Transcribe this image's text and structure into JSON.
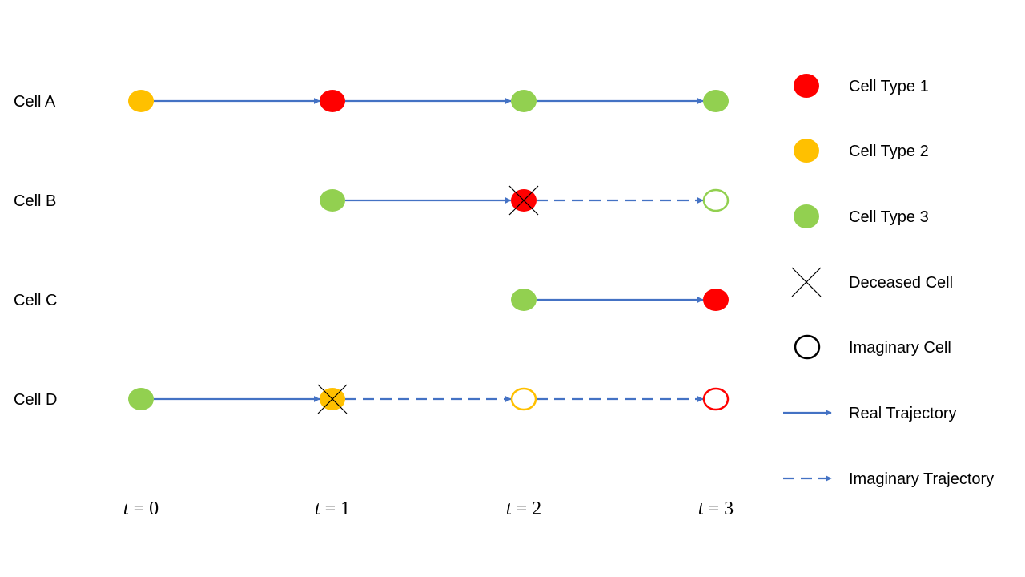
{
  "colors": {
    "cell_type_1": "#ff0000",
    "cell_type_2": "#ffc000",
    "cell_type_3": "#92d050",
    "trajectory": "#4472c4",
    "cross": "#000000"
  },
  "time_steps": [
    {
      "var": "t",
      "op": "=",
      "value": "0"
    },
    {
      "var": "t",
      "op": "=",
      "value": "1"
    },
    {
      "var": "t",
      "op": "=",
      "value": "2"
    },
    {
      "var": "t",
      "op": "=",
      "value": "3"
    }
  ],
  "cells": [
    {
      "label": "Cell A",
      "nodes": [
        {
          "t": 0,
          "type": "cell_type_2",
          "state": "real"
        },
        {
          "t": 1,
          "type": "cell_type_1",
          "state": "real"
        },
        {
          "t": 2,
          "type": "cell_type_3",
          "state": "real"
        },
        {
          "t": 3,
          "type": "cell_type_3",
          "state": "real"
        }
      ],
      "edges": [
        {
          "from": 0,
          "to": 1,
          "kind": "real"
        },
        {
          "from": 1,
          "to": 2,
          "kind": "real"
        },
        {
          "from": 2,
          "to": 3,
          "kind": "real"
        }
      ]
    },
    {
      "label": "Cell B",
      "nodes": [
        {
          "t": 1,
          "type": "cell_type_3",
          "state": "real"
        },
        {
          "t": 2,
          "type": "cell_type_1",
          "state": "deceased"
        },
        {
          "t": 3,
          "type": "cell_type_3",
          "state": "imaginary"
        }
      ],
      "edges": [
        {
          "from": 1,
          "to": 2,
          "kind": "real"
        },
        {
          "from": 2,
          "to": 3,
          "kind": "imaginary"
        }
      ]
    },
    {
      "label": "Cell C",
      "nodes": [
        {
          "t": 2,
          "type": "cell_type_3",
          "state": "real"
        },
        {
          "t": 3,
          "type": "cell_type_1",
          "state": "real"
        }
      ],
      "edges": [
        {
          "from": 2,
          "to": 3,
          "kind": "real"
        }
      ]
    },
    {
      "label": "Cell D",
      "nodes": [
        {
          "t": 0,
          "type": "cell_type_3",
          "state": "real"
        },
        {
          "t": 1,
          "type": "cell_type_2",
          "state": "deceased"
        },
        {
          "t": 2,
          "type": "cell_type_2",
          "state": "imaginary"
        },
        {
          "t": 3,
          "type": "cell_type_1",
          "state": "imaginary"
        }
      ],
      "edges": [
        {
          "from": 0,
          "to": 1,
          "kind": "real"
        },
        {
          "from": 1,
          "to": 2,
          "kind": "imaginary"
        },
        {
          "from": 2,
          "to": 3,
          "kind": "imaginary"
        }
      ]
    }
  ],
  "legend": [
    {
      "symbol": "dot",
      "color_key": "cell_type_1",
      "label": "Cell Type 1"
    },
    {
      "symbol": "dot",
      "color_key": "cell_type_2",
      "label": "Cell Type 2"
    },
    {
      "symbol": "dot",
      "color_key": "cell_type_3",
      "label": "Cell Type 3"
    },
    {
      "symbol": "cross",
      "label": "Deceased Cell"
    },
    {
      "symbol": "ring",
      "label": "Imaginary Cell"
    },
    {
      "symbol": "solid-arrow",
      "label": "Real Trajectory"
    },
    {
      "symbol": "dashed-arrow",
      "label": "Imaginary Trajectory"
    }
  ]
}
